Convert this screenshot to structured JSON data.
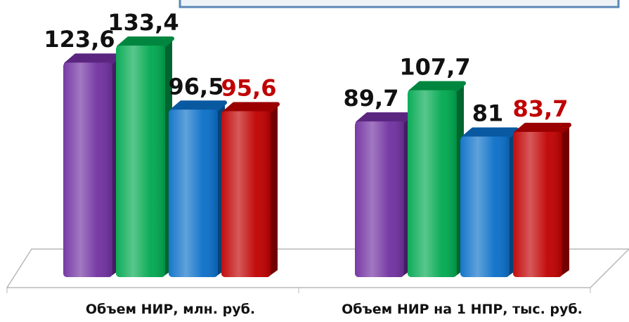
{
  "chart_data": {
    "type": "bar3d",
    "categories": [
      "Объем НИР, млн. руб.",
      "Объем НИР на 1 НПР, тыс. руб."
    ],
    "series": [
      {
        "color": "#7030a0",
        "label_color": "#111111",
        "values": [
          123.6,
          89.7
        ],
        "value_labels": [
          "123,6",
          "89,7"
        ]
      },
      {
        "color": "#00a84f",
        "label_color": "#111111",
        "values": [
          133.4,
          107.7
        ],
        "value_labels": [
          "133,4",
          "107,7"
        ]
      },
      {
        "color": "#0a6fc8",
        "label_color": "#111111",
        "values": [
          96.5,
          81
        ],
        "value_labels": [
          "96,5",
          "81"
        ]
      },
      {
        "color": "#c00000",
        "label_color": "#c00000",
        "values": [
          95.6,
          83.7
        ],
        "value_labels": [
          "95,6",
          "83,7"
        ]
      }
    ]
  }
}
